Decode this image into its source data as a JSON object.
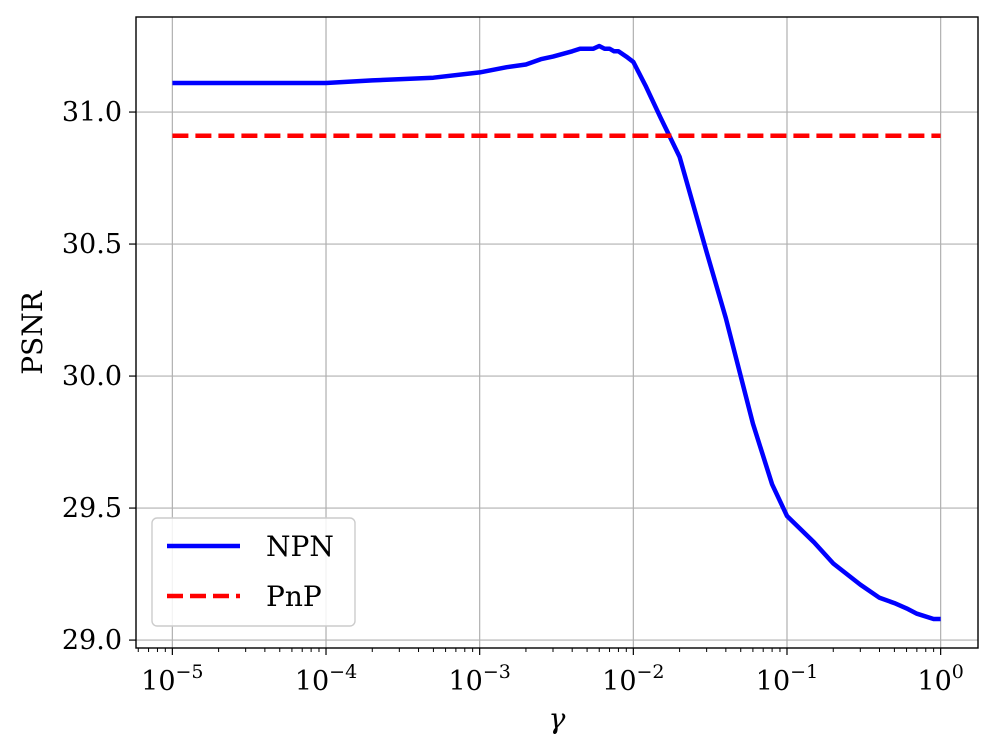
{
  "chart_data": {
    "type": "line",
    "title": "",
    "xlabel": "γ",
    "ylabel": "PSNR",
    "xscale": "log",
    "xlim": [
      5.8e-06,
      1.75
    ],
    "ylim": [
      28.97,
      31.36
    ],
    "grid": true,
    "legend_position": "bottom-left",
    "x_ticks": [
      {
        "value": 1e-05,
        "base": "10",
        "exp": "−5"
      },
      {
        "value": 0.0001,
        "base": "10",
        "exp": "−4"
      },
      {
        "value": 0.001,
        "base": "10",
        "exp": "−3"
      },
      {
        "value": 0.01,
        "base": "10",
        "exp": "−2"
      },
      {
        "value": 0.1,
        "base": "10",
        "exp": "−1"
      },
      {
        "value": 1,
        "base": "10",
        "exp": "0"
      }
    ],
    "y_ticks": [
      {
        "value": 29.0,
        "label": "29.0"
      },
      {
        "value": 29.5,
        "label": "29.5"
      },
      {
        "value": 30.0,
        "label": "30.0"
      },
      {
        "value": 30.5,
        "label": "30.5"
      },
      {
        "value": 31.0,
        "label": "31.0"
      }
    ],
    "series": [
      {
        "name": "NPN",
        "color": "#0000ff",
        "style": "solid",
        "x": [
          1e-05,
          0.0001,
          0.0002,
          0.0005,
          0.001,
          0.0015,
          0.002,
          0.0025,
          0.003,
          0.004,
          0.0045,
          0.005,
          0.0055,
          0.006,
          0.0065,
          0.007,
          0.0075,
          0.008,
          0.009,
          0.01,
          0.012,
          0.015,
          0.02,
          0.03,
          0.04,
          0.05,
          0.06,
          0.08,
          0.1,
          0.15,
          0.2,
          0.3,
          0.4,
          0.5,
          0.6,
          0.7,
          0.9,
          1.0
        ],
        "y": [
          31.11,
          31.11,
          31.12,
          31.13,
          31.15,
          31.17,
          31.18,
          31.2,
          31.21,
          31.23,
          31.24,
          31.24,
          31.24,
          31.25,
          31.24,
          31.24,
          31.23,
          31.23,
          31.21,
          31.19,
          31.1,
          30.98,
          30.83,
          30.47,
          30.22,
          30.0,
          29.82,
          29.59,
          29.47,
          29.37,
          29.29,
          29.21,
          29.16,
          29.14,
          29.12,
          29.1,
          29.08,
          29.08
        ]
      },
      {
        "name": "PnP",
        "color": "#ff0000",
        "style": "dashed",
        "x": [
          1e-05,
          1.0
        ],
        "y": [
          30.91,
          30.91
        ]
      }
    ]
  }
}
